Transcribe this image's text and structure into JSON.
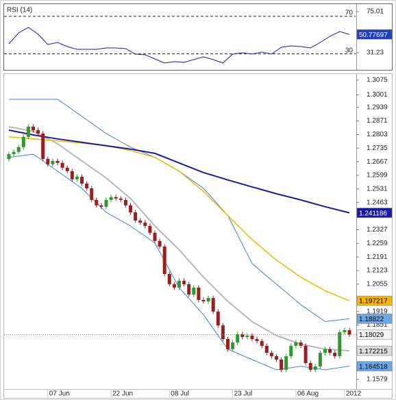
{
  "chart_data": [
    {
      "type": "line",
      "title": "RSI (14)",
      "x": [
        0,
        2,
        4,
        6,
        8,
        10,
        12,
        14,
        16,
        18,
        20,
        22,
        24,
        26,
        28,
        30,
        32,
        34,
        36,
        38,
        40,
        42,
        44,
        46,
        48,
        50,
        52,
        54,
        56,
        58,
        60,
        62,
        64,
        66,
        68,
        70
      ],
      "series": [
        {
          "color": "#1a1aa8",
          "box_color": "#2040c0",
          "box_text": "#ffffff",
          "values": [
            40.71,
            52.39,
            58.23,
            50.93,
            39.98,
            42.17,
            37.8,
            34.88,
            34.88,
            34.88,
            36.34,
            36.34,
            35.61,
            29.77,
            29.04,
            24.66,
            20.28,
            21.74,
            21.01,
            23.93,
            26.85,
            23.93,
            20.28,
            29.77,
            31.23,
            29.77,
            31.96,
            29.77,
            37.07,
            38.52,
            37.8,
            36.34,
            42.17,
            48.74,
            53.85,
            50.77697
          ]
        }
      ],
      "ylim": [
        13,
        83
      ],
      "yticks": [
        75.01,
        31.23
      ],
      "levels": [
        70,
        30
      ]
    },
    {
      "type": "candlestick",
      "categories": [
        null,
        null,
        null,
        null,
        null,
        null,
        null,
        null,
        "07 Jun",
        null,
        null,
        null,
        null,
        null,
        null,
        null,
        null,
        null,
        null,
        null,
        null,
        "22 Jun",
        null,
        null,
        null,
        null,
        null,
        null,
        null,
        null,
        null,
        null,
        null,
        "08 Jul",
        null,
        null,
        null,
        null,
        null,
        null,
        null,
        null,
        null,
        null,
        null,
        null,
        "23 Jul",
        null,
        null,
        null,
        null,
        null,
        null,
        null,
        null,
        null,
        null,
        null,
        null,
        "06 Aug",
        null,
        null,
        null,
        null,
        null,
        null,
        null,
        null,
        null,
        "2012",
        null
      ],
      "open": [
        1.268,
        1.2705,
        1.2716,
        1.274,
        1.2791,
        1.2842,
        1.2825,
        1.2808,
        1.2681,
        1.2654,
        1.2671,
        1.2661,
        1.2637,
        1.262,
        1.2579,
        1.2592,
        1.2558,
        1.2534,
        1.2476,
        1.2449,
        1.2442,
        1.2476,
        1.249,
        1.2483,
        1.2476,
        1.2449,
        1.2414,
        1.2373,
        1.2363,
        1.2346,
        1.2312,
        1.2271,
        1.2243,
        1.2106,
        1.2055,
        1.2038,
        1.2072,
        1.2055,
        1.2003,
        1.2038,
        1.1976,
        1.1969,
        1.1986,
        1.1918,
        1.1849,
        1.1781,
        1.173,
        1.1764,
        1.1805,
        1.1791,
        1.1798,
        1.1781,
        1.1771,
        1.1747,
        1.1712,
        1.1695,
        1.1678,
        1.1627,
        1.1695,
        1.1747,
        1.1764,
        1.1747,
        1.1661,
        1.1627,
        1.1644,
        1.1712,
        1.173,
        1.1712,
        1.1695,
        1.1815,
        1.1825
      ],
      "high": [
        1.2717,
        1.2728,
        1.2752,
        1.2803,
        1.2854,
        1.2854,
        1.2837,
        1.282,
        1.2693,
        1.2683,
        1.2683,
        1.2673,
        1.2649,
        1.2632,
        1.2604,
        1.2604,
        1.257,
        1.2546,
        1.2488,
        1.2461,
        1.2488,
        1.2502,
        1.2502,
        1.2495,
        1.2488,
        1.2461,
        1.2426,
        1.2385,
        1.2375,
        1.2358,
        1.2324,
        1.2283,
        1.2255,
        1.2118,
        1.2067,
        1.2084,
        1.2084,
        1.2067,
        1.205,
        1.205,
        1.1988,
        1.1998,
        1.1998,
        1.193,
        1.1861,
        1.1793,
        1.1776,
        1.1817,
        1.1817,
        1.181,
        1.181,
        1.1793,
        1.1783,
        1.1759,
        1.1724,
        1.1707,
        1.169,
        1.1707,
        1.1759,
        1.1776,
        1.1776,
        1.1759,
        1.1673,
        1.1656,
        1.1724,
        1.1742,
        1.1742,
        1.1724,
        1.1827,
        1.1837,
        1.1837
      ],
      "low": [
        1.2668,
        1.2693,
        1.2704,
        1.2728,
        1.2779,
        1.2813,
        1.2796,
        1.2669,
        1.2642,
        1.2642,
        1.2649,
        1.2625,
        1.2608,
        1.2567,
        1.2567,
        1.2546,
        1.2522,
        1.2464,
        1.2437,
        1.243,
        1.243,
        1.2464,
        1.2471,
        1.2464,
        1.2437,
        1.2402,
        1.2361,
        1.2351,
        1.2334,
        1.23,
        1.2259,
        1.2231,
        1.2094,
        1.2043,
        1.2026,
        1.2026,
        1.2043,
        1.1991,
        1.1991,
        1.1964,
        1.1957,
        1.1957,
        1.1906,
        1.1837,
        1.1769,
        1.1718,
        1.1718,
        1.1752,
        1.1779,
        1.1779,
        1.1769,
        1.1759,
        1.1735,
        1.17,
        1.1683,
        1.1666,
        1.1615,
        1.1615,
        1.1683,
        1.1735,
        1.1735,
        1.1649,
        1.1615,
        1.1615,
        1.1632,
        1.17,
        1.17,
        1.1683,
        1.1683,
        1.1803,
        1.1791
      ],
      "close": [
        1.2705,
        1.2716,
        1.274,
        1.2791,
        1.2842,
        1.2825,
        1.2808,
        1.2681,
        1.2654,
        1.2671,
        1.2661,
        1.2637,
        1.262,
        1.2579,
        1.2592,
        1.2558,
        1.2534,
        1.2476,
        1.2449,
        1.2442,
        1.2476,
        1.249,
        1.2483,
        1.2476,
        1.2449,
        1.2414,
        1.2373,
        1.2363,
        1.2346,
        1.2312,
        1.2271,
        1.2243,
        1.2106,
        1.2055,
        1.2038,
        1.2072,
        1.2055,
        1.2003,
        1.2038,
        1.1976,
        1.1969,
        1.1986,
        1.1918,
        1.1849,
        1.1781,
        1.173,
        1.1764,
        1.1805,
        1.1791,
        1.1798,
        1.1781,
        1.1771,
        1.1747,
        1.1712,
        1.1695,
        1.1678,
        1.1627,
        1.1695,
        1.1747,
        1.1764,
        1.1747,
        1.1661,
        1.1627,
        1.1644,
        1.1712,
        1.173,
        1.1712,
        1.1695,
        1.1815,
        1.1825,
        1.18029
      ],
      "up_color": "#2e9a2e",
      "down_color": "#9c1f1f",
      "close_box_color": "#f4f4f4",
      "series": [
        {
          "color": "#3a86d4",
          "width": 1,
          "box_color": "#6aa8e6",
          "box_text": "#000000",
          "x": [
            0,
            5,
            10,
            15,
            20,
            25,
            30,
            35,
            40,
            45,
            50,
            55,
            60,
            65,
            70
          ],
          "values": [
            1.2979,
            1.2979,
            1.2979,
            1.2894,
            1.2808,
            1.274,
            1.2689,
            1.262,
            1.2534,
            1.2398,
            1.2158,
            1.2055,
            1.1953,
            1.1868,
            1.18822
          ]
        },
        {
          "color": "#3a86d4",
          "width": 1,
          "box_color": "#6aa8e6",
          "box_text": "#000000",
          "x": [
            0,
            5,
            10,
            15,
            20,
            25,
            30,
            35,
            40,
            45,
            50,
            55,
            60,
            65,
            70
          ],
          "values": [
            1.2689,
            1.2705,
            1.262,
            1.2534,
            1.2414,
            1.2346,
            1.2261,
            1.2038,
            1.1902,
            1.173,
            1.1678,
            1.1627,
            1.1645,
            1.1627,
            1.164518
          ]
        },
        {
          "color": "#b8b8b8",
          "width": 2,
          "box_color": "#dcdcdc",
          "box_text": "#000000",
          "x": [
            0,
            5,
            10,
            15,
            20,
            25,
            30,
            35,
            40,
            45,
            50,
            55,
            60,
            65,
            70
          ],
          "values": [
            1.2842,
            1.2819,
            1.2757,
            1.2671,
            1.2586,
            1.2483,
            1.2346,
            1.2227,
            1.209,
            1.1969,
            1.1868,
            1.1798,
            1.1755,
            1.173,
            1.172215
          ]
        },
        {
          "color": "#f5b800",
          "width": 1.5,
          "box_color": "#f7b500",
          "box_text": "#000000",
          "x": [
            0,
            5,
            10,
            15,
            20,
            25,
            30,
            35,
            40,
            45,
            50,
            55,
            60,
            65,
            70
          ],
          "values": [
            1.2791,
            1.2781,
            1.2771,
            1.276,
            1.2747,
            1.2723,
            1.2689,
            1.262,
            1.2518,
            1.2398,
            1.2278,
            1.2175,
            1.209,
            1.2022,
            1.197217
          ]
        },
        {
          "color": "#1a1aa0",
          "width": 2,
          "box_color": "#1a1aa0",
          "box_text": "#ffffff",
          "x": [
            0,
            5,
            10,
            15,
            20,
            25,
            30,
            35,
            40,
            45,
            50,
            55,
            60,
            65,
            70
          ],
          "values": [
            1.2825,
            1.2801,
            1.2781,
            1.2764,
            1.2747,
            1.273,
            1.2709,
            1.2661,
            1.2613,
            1.2576,
            1.2541,
            1.2507,
            1.2476,
            1.2442,
            1.241186
          ]
        }
      ],
      "ylim": [
        1.1483,
        1.3109
      ],
      "yticks": [
        1.3075,
        1.3001,
        1.2939,
        1.2871,
        1.2803,
        1.2735,
        1.2667,
        1.2599,
        1.2531,
        1.2463,
        1.2327,
        1.2259,
        1.2191,
        1.2123,
        1.2055,
        1.1919,
        1.1851,
        1.1579
      ],
      "price_line": true
    }
  ]
}
